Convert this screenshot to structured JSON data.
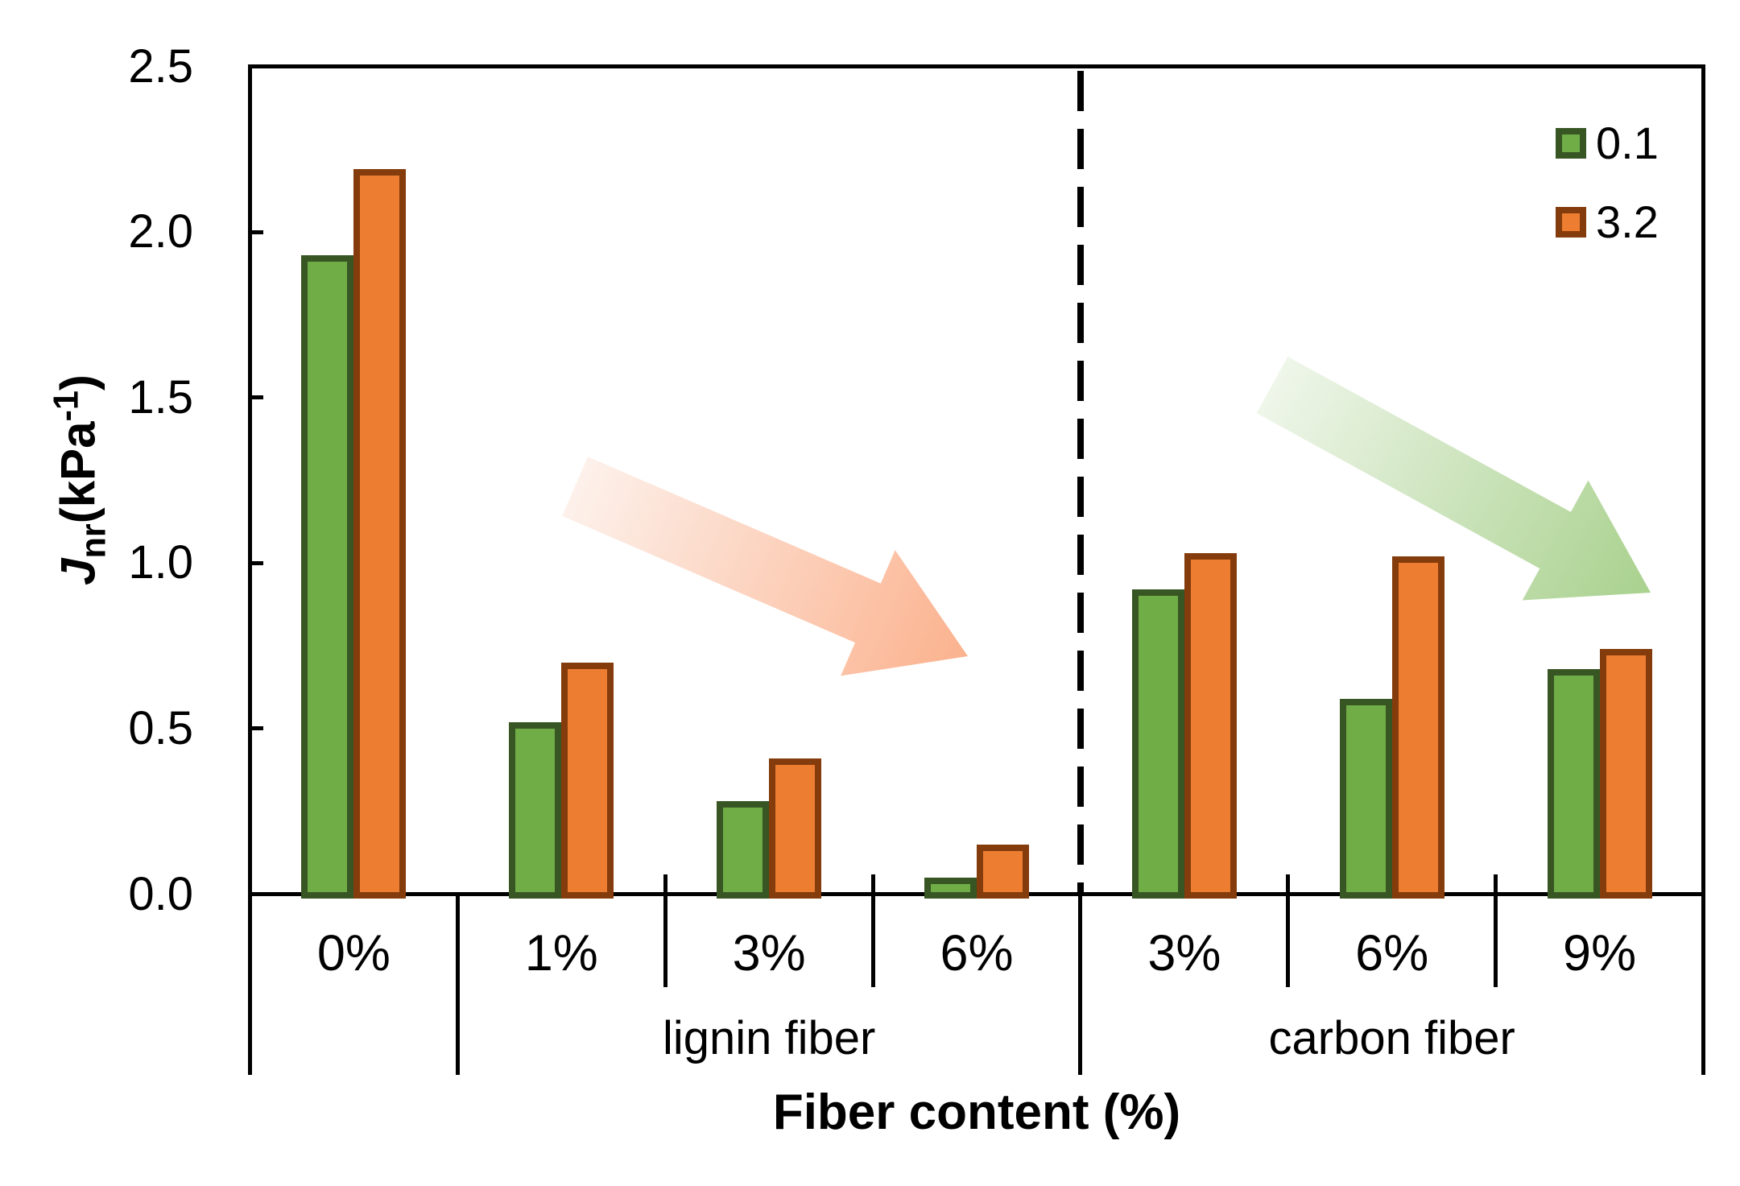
{
  "chart_data": {
    "type": "bar",
    "title": "",
    "xlabel": "Fiber content (%)",
    "ylabel_parts": {
      "symbol": "J",
      "subscript": "nr",
      "unit_open": "(kPa",
      "unit_superscript": "-1",
      "unit_close": ")"
    },
    "ylim": [
      0,
      2.5
    ],
    "yticks": [
      "0.0",
      "0.5",
      "1.0",
      "1.5",
      "2.0",
      "2.5"
    ],
    "grid": false,
    "categories": [
      "0%",
      "1%",
      "3%",
      "6%",
      "3%",
      "6%",
      "9%"
    ],
    "sections": [
      {
        "label": "",
        "span": [
          0,
          0
        ]
      },
      {
        "label": "lignin fiber",
        "span": [
          1,
          3
        ]
      },
      {
        "label": "carbon fiber",
        "span": [
          4,
          6
        ]
      }
    ],
    "separator": {
      "style": "dashed",
      "at_boundary_index": 4
    },
    "series": [
      {
        "name": "0.1",
        "fill": "#70AD47",
        "border": "#375623",
        "values": [
          1.93,
          0.52,
          0.28,
          0.05,
          0.92,
          0.59,
          0.68
        ]
      },
      {
        "name": "3.2",
        "fill": "#ED7D31",
        "border": "#843C0C",
        "values": [
          2.19,
          0.7,
          0.41,
          0.15,
          1.03,
          1.02,
          0.74
        ]
      }
    ],
    "legend": {
      "position": "top-right",
      "entries": [
        "0.1",
        "3.2"
      ]
    },
    "annotations": [
      {
        "type": "block-arrow",
        "region": "lignin fiber",
        "direction": "down-right",
        "color_start": "#FDF1EB",
        "color_end": "#FBB28E"
      },
      {
        "type": "block-arrow",
        "region": "carbon fiber",
        "direction": "down-right",
        "color_start": "#EFF6EA",
        "color_end": "#A9D18E"
      }
    ]
  }
}
